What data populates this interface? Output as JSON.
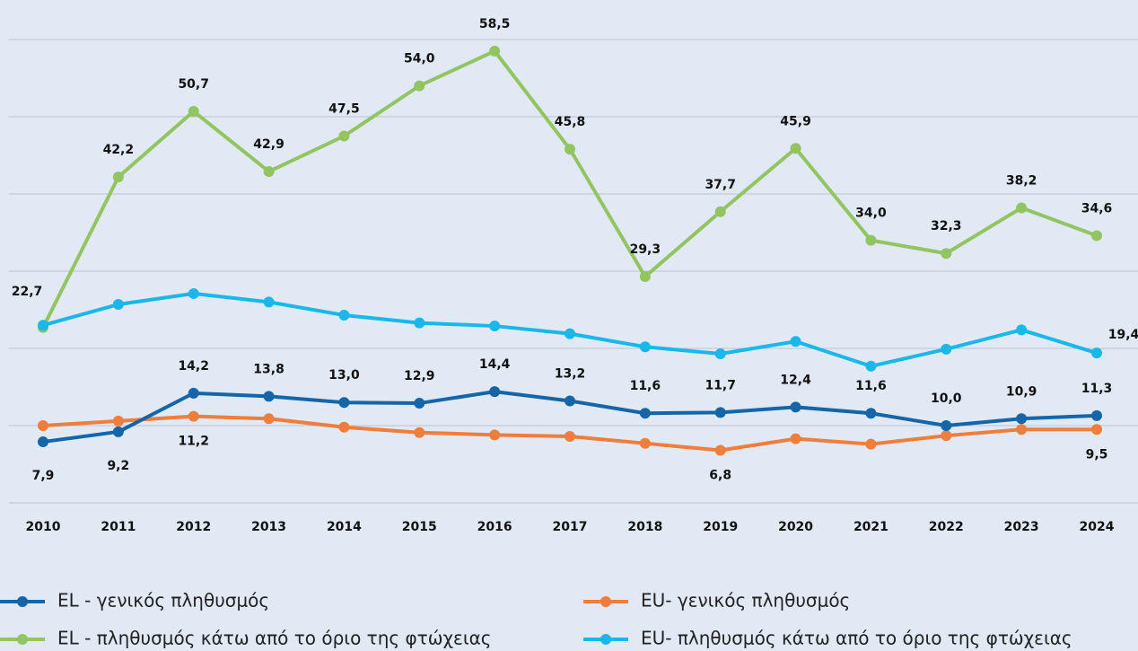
{
  "chart_data": {
    "type": "line",
    "x": [
      "2010",
      "2011",
      "2012",
      "2013",
      "2014",
      "2015",
      "2016",
      "2017",
      "2018",
      "2019",
      "2020",
      "2021",
      "2022",
      "2023",
      "2024"
    ],
    "ylim": [
      0,
      60
    ],
    "yticks": [
      0,
      10,
      20,
      30,
      40,
      50,
      60
    ],
    "grid": true,
    "series": [
      {
        "name": "EL - γενικός πληθυσμός",
        "color": "#1565a8",
        "values": [
          7.9,
          9.2,
          14.2,
          13.8,
          13.0,
          12.9,
          14.4,
          13.2,
          11.6,
          11.7,
          12.4,
          11.6,
          10.0,
          10.9,
          11.3
        ],
        "value_labels": [
          "7,9",
          "9,2",
          "14,2",
          "13,8",
          "13,0",
          "12,9",
          "14,4",
          "13,2",
          "11,6",
          "11,7",
          "12,4",
          "11,6",
          "10,0",
          "10,9",
          "11,3"
        ]
      },
      {
        "name": "EU- γενικός πληθυσμός",
        "color": "#ef7d3c",
        "values": [
          10.0,
          10.6,
          11.2,
          10.9,
          9.8,
          9.1,
          8.8,
          8.6,
          7.7,
          6.8,
          8.3,
          7.6,
          8.7,
          9.5,
          9.5
        ],
        "value_labels": [
          null,
          null,
          "11,2",
          null,
          null,
          null,
          null,
          null,
          null,
          "6,8",
          null,
          null,
          null,
          null,
          "9,5"
        ]
      },
      {
        "name": "EL - πληθυσμός κάτω από το όριο της φτώχειας",
        "color": "#92c462",
        "values": [
          22.7,
          42.2,
          50.7,
          42.9,
          47.5,
          54.0,
          58.5,
          45.8,
          29.3,
          37.7,
          45.9,
          34.0,
          32.3,
          38.2,
          34.6
        ],
        "value_labels": [
          "22,7",
          "42,2",
          "50,7",
          "42,9",
          "47,5",
          "54,0",
          "58,5",
          "45,8",
          "29,3",
          "37,7",
          "45,9",
          "34,0",
          "32,3",
          "38,2",
          "34,6"
        ]
      },
      {
        "name": "EU- πληθυσμός κάτω από το όριο της φτώχειας",
        "color": "#1ab7ea",
        "values": [
          23.0,
          25.7,
          27.1,
          26.0,
          24.3,
          23.3,
          22.9,
          21.9,
          20.2,
          19.3,
          20.9,
          17.7,
          19.9,
          22.4,
          19.4
        ],
        "value_labels": [
          null,
          null,
          null,
          null,
          null,
          null,
          null,
          null,
          null,
          null,
          null,
          null,
          null,
          null,
          "19,4"
        ]
      }
    ]
  }
}
